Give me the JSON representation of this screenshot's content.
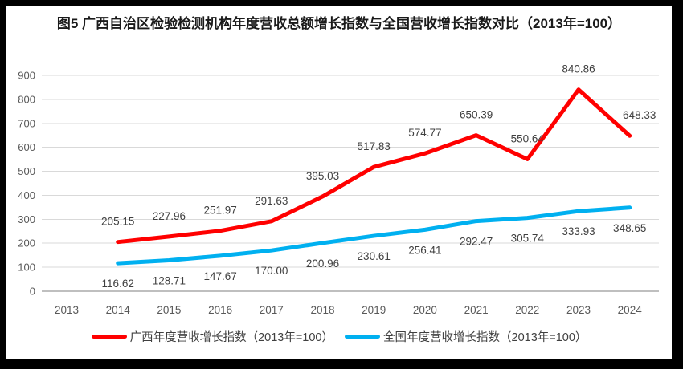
{
  "title": "图5  广西自治区检验检测机构年度营收总额增长指数与全国营收增长指数对比（2013年=100）",
  "colors": {
    "guangxi_line": "#FF0000",
    "national_line": "#00B0F0",
    "gridline": "#D9D9D9",
    "axis_line": "#BFBFBF",
    "tick_text": "#595959",
    "data_label_text": "#404040",
    "frame_border": "#000000"
  },
  "chart_data": {
    "type": "line",
    "title": "图5  广西自治区检验检测机构年度营收总额增长指数与全国营收增长指数对比（2013年=100）",
    "categories": [
      "2013",
      "2014",
      "2015",
      "2016",
      "2017",
      "2018",
      "2019",
      "2020",
      "2021",
      "2022",
      "2023",
      "2024"
    ],
    "xlabel": "",
    "ylabel": "",
    "ylim": [
      0,
      900
    ],
    "ytick_step": 100,
    "grid": "horizontal",
    "legend_position": "bottom",
    "data_labels_visible": true,
    "series": [
      {
        "id": "guangxi",
        "name": "广西年度营收增长指数（2013年=100）",
        "color": "#FF0000",
        "label_side": "above",
        "values": [
          null,
          205.15,
          227.96,
          251.97,
          291.63,
          395.03,
          517.83,
          574.77,
          650.39,
          550.64,
          840.86,
          648.33
        ]
      },
      {
        "id": "national",
        "name": "全国年度营收增长指数（2013年=100）",
        "color": "#00B0F0",
        "label_side": "below",
        "values": [
          null,
          116.62,
          128.71,
          147.67,
          170.0,
          200.96,
          230.61,
          256.41,
          292.47,
          305.74,
          333.93,
          348.65
        ]
      }
    ]
  }
}
